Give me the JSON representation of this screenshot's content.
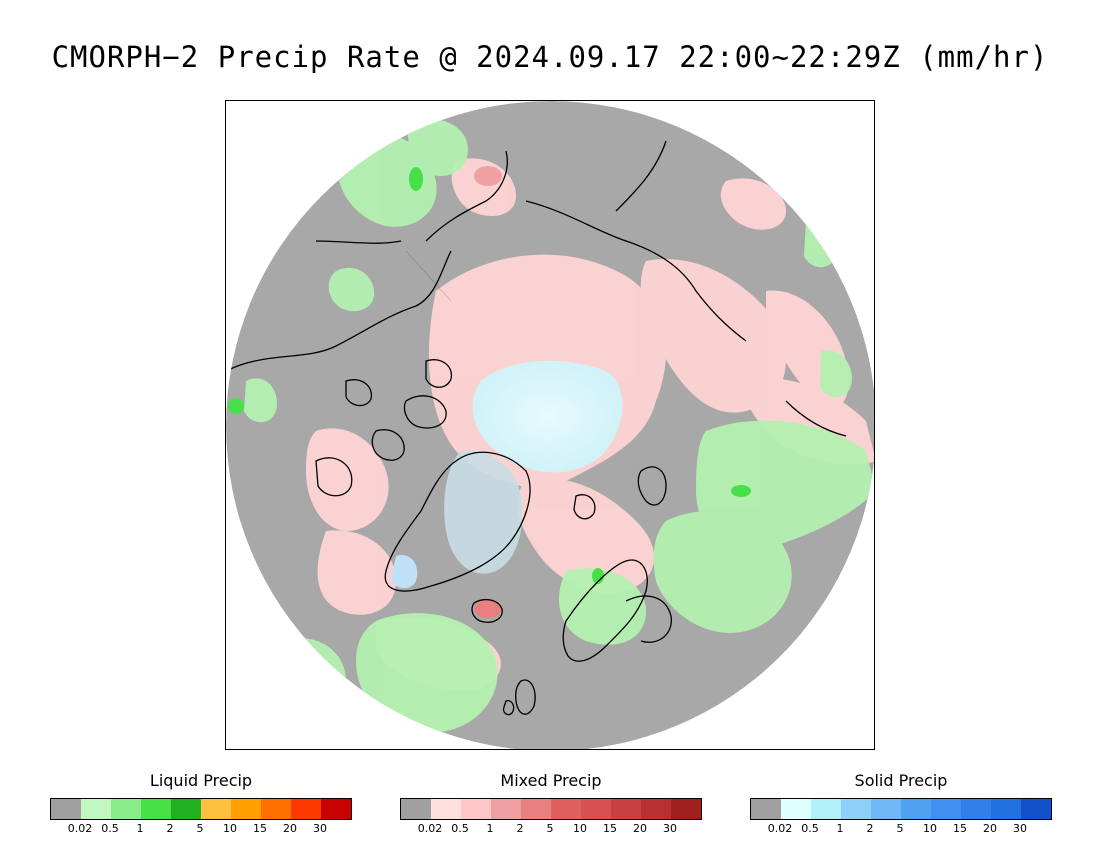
{
  "title": "CMORPH−2 Precip Rate @ 2024.09.17 22:00~22:29Z (mm/hr)",
  "map": {
    "projection": "north-polar-stereographic",
    "background_color": "#a8a8a8",
    "liquid_color": "#b4f0b0",
    "mixed_color": "#ffd4d4",
    "solid_color": "#d6f6fa",
    "coastline_color": "#000000"
  },
  "legends": [
    {
      "title": "Liquid Precip",
      "colors": [
        "#a0a0a0",
        "#c0f8c0",
        "#88ec88",
        "#48e048",
        "#20b020",
        "#ffc040",
        "#ffa000",
        "#ff7000",
        "#ff3800",
        "#c80000"
      ],
      "ticks": [
        "0.02",
        "0.5",
        "1",
        "2",
        "5",
        "10",
        "15",
        "20",
        "30"
      ]
    },
    {
      "title": "Mixed Precip",
      "colors": [
        "#a0a0a0",
        "#ffe0e0",
        "#ffc8c8",
        "#f0a0a0",
        "#e88080",
        "#e06060",
        "#d85050",
        "#c84040",
        "#b83030",
        "#a02020"
      ],
      "ticks": [
        "0.02",
        "0.5",
        "1",
        "2",
        "5",
        "10",
        "15",
        "20",
        "30"
      ]
    },
    {
      "title": "Solid Precip",
      "colors": [
        "#a0a0a0",
        "#e0ffff",
        "#b0f0f8",
        "#90d0f8",
        "#70b8f8",
        "#50a0f0",
        "#4090f0",
        "#3080e8",
        "#2070e0",
        "#1050c8"
      ],
      "ticks": [
        "0.02",
        "0.5",
        "1",
        "2",
        "5",
        "10",
        "15",
        "20",
        "30"
      ]
    }
  ]
}
